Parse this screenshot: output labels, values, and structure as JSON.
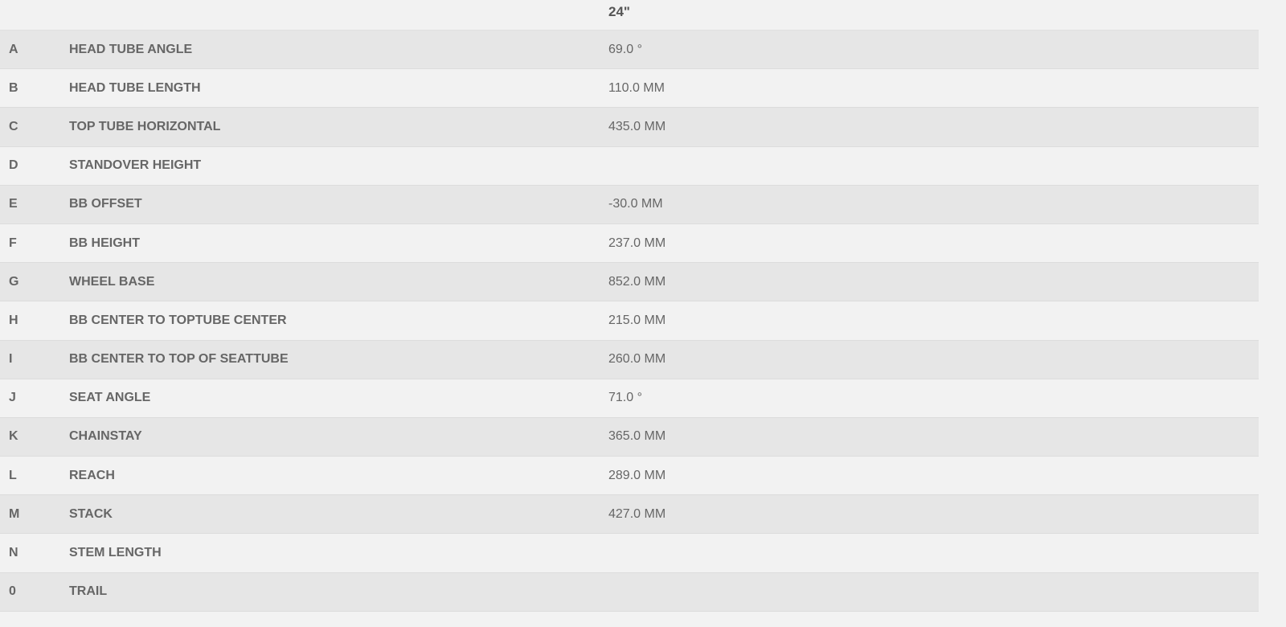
{
  "header": {
    "size": "24\""
  },
  "rows": [
    {
      "letter": "A",
      "label": "HEAD TUBE ANGLE",
      "value": "69.0 °"
    },
    {
      "letter": "B",
      "label": "HEAD TUBE LENGTH",
      "value": "110.0 MM"
    },
    {
      "letter": "C",
      "label": "TOP TUBE HORIZONTAL",
      "value": "435.0 MM"
    },
    {
      "letter": "D",
      "label": "STANDOVER HEIGHT",
      "value": ""
    },
    {
      "letter": "E",
      "label": "BB OFFSET",
      "value": "-30.0 MM"
    },
    {
      "letter": "F",
      "label": "BB HEIGHT",
      "value": "237.0 MM"
    },
    {
      "letter": "G",
      "label": "WHEEL BASE",
      "value": "852.0 MM"
    },
    {
      "letter": "H",
      "label": "BB CENTER TO TOPTUBE CENTER",
      "value": "215.0 MM"
    },
    {
      "letter": "I",
      "label": "BB CENTER TO TOP OF SEATTUBE",
      "value": "260.0 MM"
    },
    {
      "letter": "J",
      "label": "SEAT ANGLE",
      "value": "71.0 °"
    },
    {
      "letter": "K",
      "label": "CHAINSTAY",
      "value": "365.0 MM"
    },
    {
      "letter": "L",
      "label": "REACH",
      "value": "289.0 MM"
    },
    {
      "letter": "M",
      "label": "STACK",
      "value": "427.0 MM"
    },
    {
      "letter": "N",
      "label": "STEM LENGTH",
      "value": ""
    },
    {
      "letter": "0",
      "label": "TRAIL",
      "value": ""
    }
  ]
}
